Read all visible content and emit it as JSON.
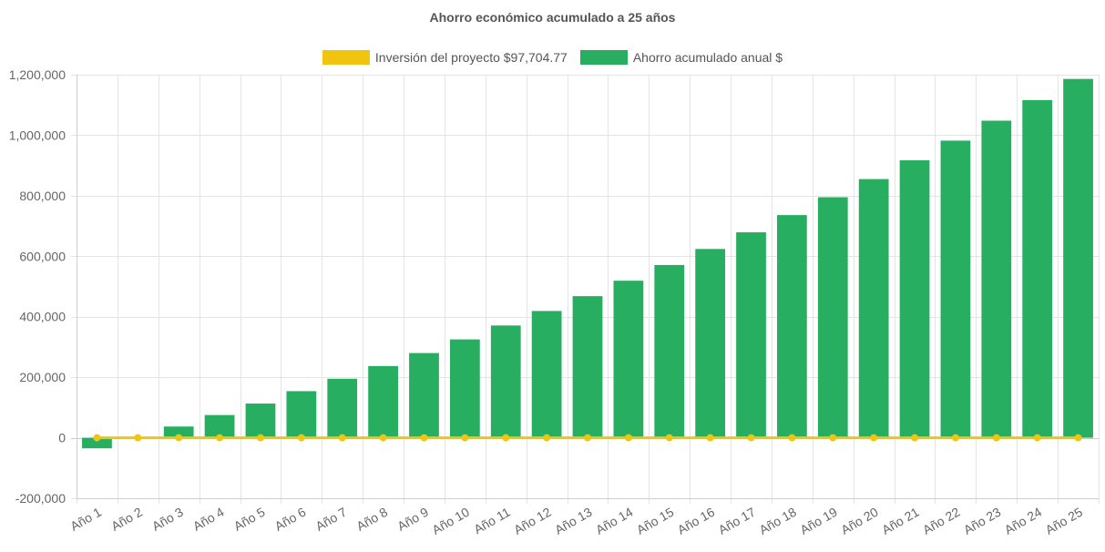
{
  "chart_data": {
    "type": "bar",
    "title": "Ahorro económico acumulado a 25 años",
    "categories": [
      "Año 1",
      "Año 2",
      "Año 3",
      "Año 4",
      "Año 5",
      "Año 6",
      "Año 7",
      "Año 8",
      "Año 9",
      "Año 10",
      "Año 11",
      "Año 12",
      "Año 13",
      "Año 14",
      "Año 15",
      "Año 16",
      "Año 17",
      "Año 18",
      "Año 19",
      "Año 20",
      "Año 21",
      "Año 22",
      "Año 23",
      "Año 24",
      "Año 25"
    ],
    "series": [
      {
        "name": "Inversión del proyecto $97,704.77",
        "type": "line",
        "color": "#f1c40f",
        "values": [
          0,
          0,
          0,
          0,
          0,
          0,
          0,
          0,
          0,
          0,
          0,
          0,
          0,
          0,
          0,
          0,
          0,
          0,
          0,
          0,
          0,
          0,
          0,
          0,
          0
        ]
      },
      {
        "name": "Ahorro acumulado anual $",
        "type": "bar",
        "color": "#27ae60",
        "values": [
          -35000,
          0,
          37000,
          75000,
          113000,
          154000,
          195000,
          237000,
          280000,
          325000,
          371000,
          419000,
          468000,
          519000,
          571000,
          624000,
          679000,
          736000,
          795000,
          855000,
          917000,
          982000,
          1048000,
          1116000,
          1186000
        ]
      }
    ],
    "ylim": [
      -200000,
      1200000
    ],
    "y_ticks": [
      "-200,000",
      "0",
      "200,000",
      "400,000",
      "600,000",
      "800,000",
      "1,000,000",
      "1,200,000"
    ],
    "y_tick_values": [
      -200000,
      0,
      200000,
      400000,
      600000,
      800000,
      1000000,
      1200000
    ],
    "grid": true,
    "legend_position": "top-center",
    "xlabel": "",
    "ylabel": ""
  }
}
